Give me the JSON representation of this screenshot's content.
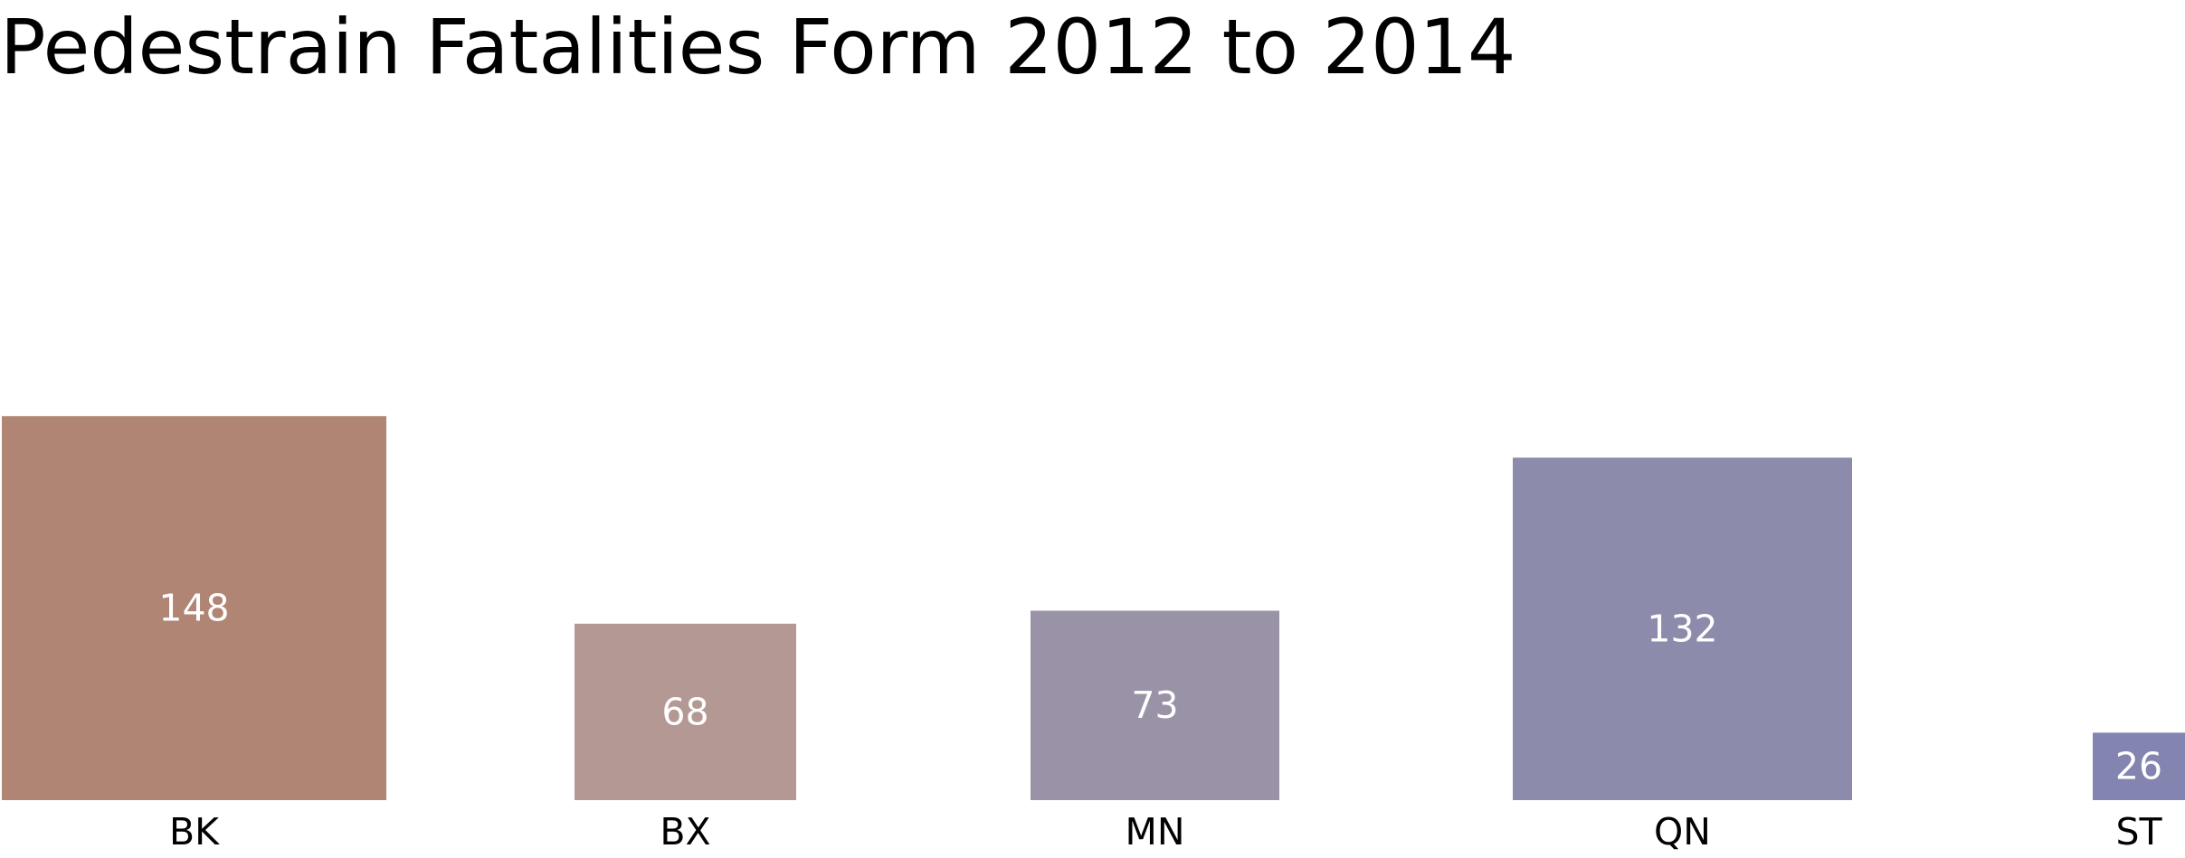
{
  "chart_data": {
    "type": "bar",
    "title": "Pedestrain Fatalities Form 2012 to 2014",
    "xlabel": "",
    "ylabel": "",
    "categories": [
      "BK",
      "BX",
      "MN",
      "QN",
      "ST"
    ],
    "values": [
      148,
      68,
      73,
      132,
      26
    ],
    "colors": [
      "#b08573",
      "#b39894",
      "#9a93a8",
      "#8c8bab",
      "#8385b0"
    ],
    "data_labels": [
      "148",
      "68",
      "73",
      "132",
      "26"
    ],
    "grid": false,
    "legend": "none"
  }
}
